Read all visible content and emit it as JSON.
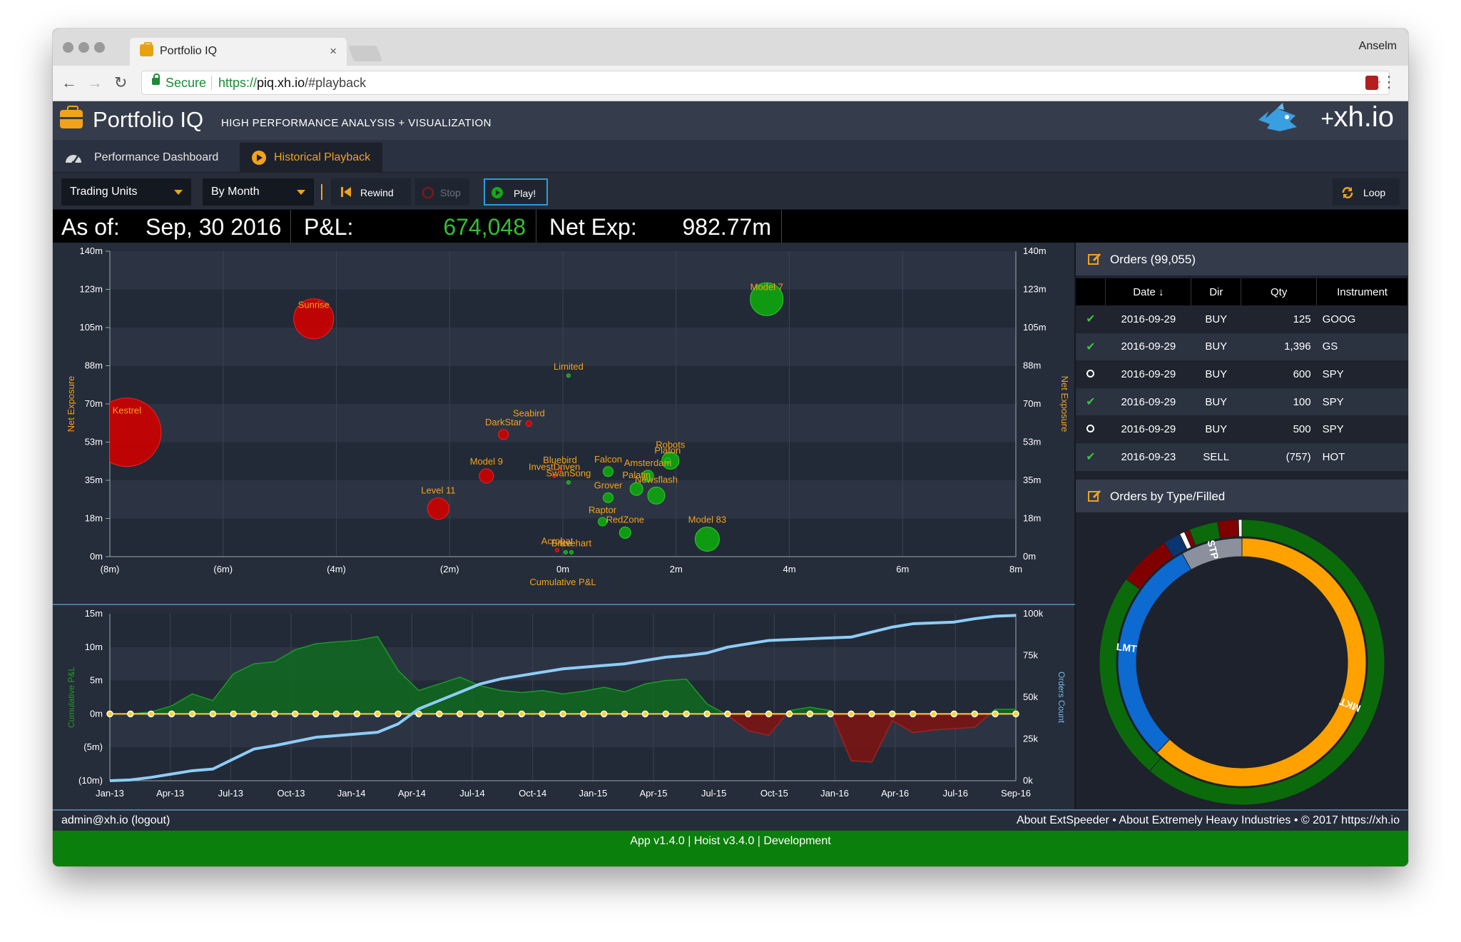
{
  "browser": {
    "tab_title": "Portfolio IQ",
    "tab_close": "×",
    "profile_name": "Anselm",
    "secure_label": "Secure",
    "url_scheme": "https://",
    "url_domain": "piq.xh.io",
    "url_path": "/#playback",
    "back_icon": "←",
    "forward_icon": "→",
    "reload_icon": "↻",
    "star_icon": "☆",
    "menu_icon": "⋮"
  },
  "app": {
    "title": "Portfolio IQ",
    "subtitle": "HIGH PERFORMANCE ANALYSIS + VISUALIZATION",
    "logo_plus": "+",
    "logo_text": "xh.io",
    "accent_color": "#f2a21b"
  },
  "nav": {
    "tabs": [
      {
        "label": "Performance Dashboard",
        "icon": "gauge-icon",
        "active": false
      },
      {
        "label": "Historical Playback",
        "icon": "play-circle-icon",
        "active": true
      }
    ]
  },
  "toolbar": {
    "dimension_select": "Trading Units",
    "period_select": "By Month",
    "rewind_label": "Rewind",
    "stop_label": "Stop",
    "play_label": "Play!",
    "loop_label": "Loop"
  },
  "summary": {
    "asof_label": "As of:",
    "asof_value": "Sep, 30 2016",
    "pnl_label": "P&L:",
    "pnl_value": "674,048",
    "netexp_label": "Net Exp:",
    "netexp_value": "982.77m"
  },
  "chart_data": [
    {
      "type": "scatter",
      "title": "",
      "xlabel": "Cumulative P&L",
      "ylabel": "Net Exposure",
      "ylabel_right": "Net Exposure",
      "xlim": [
        -8,
        8
      ],
      "ylim": [
        0,
        140
      ],
      "x_ticks": [
        "(8m)",
        "(6m)",
        "(4m)",
        "(2m)",
        "0m",
        "2m",
        "4m",
        "6m",
        "8m"
      ],
      "y_ticks": [
        "0m",
        "18m",
        "35m",
        "53m",
        "70m",
        "88m",
        "105m",
        "123m",
        "140m"
      ],
      "grid": true,
      "points": [
        {
          "name": "Kestrel",
          "x": -7.7,
          "y": 57,
          "size": 48,
          "color": "#cc0000"
        },
        {
          "name": "Sunrise",
          "x": -4.4,
          "y": 109,
          "size": 28,
          "color": "#cc0000"
        },
        {
          "name": "Model 7",
          "x": 3.6,
          "y": 118,
          "size": 23,
          "color": "#0fa40f"
        },
        {
          "name": "Limited",
          "x": 0.1,
          "y": 83,
          "size": 2.5,
          "color": "#0fa40f"
        },
        {
          "name": "Seabird",
          "x": -0.6,
          "y": 61,
          "size": 4,
          "color": "#cc0000"
        },
        {
          "name": "DarkStar",
          "x": -1.05,
          "y": 56,
          "size": 7,
          "color": "#cc0000"
        },
        {
          "name": "Model 9",
          "x": -1.35,
          "y": 37,
          "size": 10,
          "color": "#cc0000"
        },
        {
          "name": "Level 11",
          "x": -2.2,
          "y": 22,
          "size": 15,
          "color": "#cc0000"
        },
        {
          "name": "Bluebird",
          "x": -0.05,
          "y": 40,
          "size": 2.5,
          "color": "#cc0000"
        },
        {
          "name": "InvestDriven",
          "x": -0.15,
          "y": 37,
          "size": 2.5,
          "color": "#cc0000"
        },
        {
          "name": "SwanSong",
          "x": 0.1,
          "y": 34,
          "size": 2.5,
          "color": "#0fa40f"
        },
        {
          "name": "Falcon",
          "x": 0.8,
          "y": 39,
          "size": 7,
          "color": "#0fa40f"
        },
        {
          "name": "Amsterdam",
          "x": 1.5,
          "y": 37,
          "size": 8,
          "color": "#0fa40f"
        },
        {
          "name": "Palatin",
          "x": 1.3,
          "y": 31,
          "size": 9,
          "color": "#0fa40f"
        },
        {
          "name": "Newsflash",
          "x": 1.65,
          "y": 28,
          "size": 12,
          "color": "#0fa40f"
        },
        {
          "name": "Robots",
          "x": 1.9,
          "y": 44,
          "size": 12,
          "color": "#0fa40f"
        },
        {
          "name": "Platon",
          "x": 1.85,
          "y": 44,
          "size": 4,
          "color": "#0fa40f"
        },
        {
          "name": "Grover",
          "x": 0.8,
          "y": 27,
          "size": 7,
          "color": "#0fa40f"
        },
        {
          "name": "Raptor",
          "x": 0.7,
          "y": 16,
          "size": 6,
          "color": "#0fa40f"
        },
        {
          "name": "RedZone",
          "x": 1.1,
          "y": 11,
          "size": 8,
          "color": "#0fa40f"
        },
        {
          "name": "Model 83",
          "x": 2.55,
          "y": 8,
          "size": 17,
          "color": "#0fa40f"
        },
        {
          "name": "Acrobat",
          "x": -0.1,
          "y": 3,
          "size": 2.5,
          "color": "#cc0000"
        },
        {
          "name": "Ice",
          "x": 0.05,
          "y": 2,
          "size": 2.5,
          "color": "#0fa40f"
        },
        {
          "name": "Bravehart",
          "x": 0.15,
          "y": 2,
          "size": 2.5,
          "color": "#0fa40f"
        }
      ]
    },
    {
      "type": "area",
      "title": "",
      "xlabel": "",
      "ylabel": "Cumulative P&L",
      "ylabel_right": "Orders Count",
      "ylim": [
        -10,
        15
      ],
      "ylim_right": [
        0,
        100000
      ],
      "x_ticks": [
        "Jan-13",
        "Apr-13",
        "Jul-13",
        "Oct-13",
        "Jan-14",
        "Apr-14",
        "Jul-14",
        "Oct-14",
        "Jan-15",
        "Apr-15",
        "Jul-15",
        "Oct-15",
        "Jan-16",
        "Apr-16",
        "Jul-16",
        "Sep-16"
      ],
      "y_ticks": [
        "(10m)",
        "(5m)",
        "0m",
        "5m",
        "10m",
        "15m"
      ],
      "y_ticks_right": [
        "0k",
        "25k",
        "50k",
        "75k",
        "100k"
      ],
      "grid": true,
      "x": [
        "Jan-13",
        "Feb-13",
        "Mar-13",
        "Apr-13",
        "May-13",
        "Jun-13",
        "Jul-13",
        "Aug-13",
        "Sep-13",
        "Oct-13",
        "Nov-13",
        "Dec-13",
        "Jan-14",
        "Feb-14",
        "Mar-14",
        "Apr-14",
        "May-14",
        "Jun-14",
        "Jul-14",
        "Aug-14",
        "Sep-14",
        "Oct-14",
        "Nov-14",
        "Dec-14",
        "Jan-15",
        "Feb-15",
        "Mar-15",
        "Apr-15",
        "May-15",
        "Jun-15",
        "Jul-15",
        "Aug-15",
        "Sep-15",
        "Oct-15",
        "Nov-15",
        "Dec-15",
        "Jan-16",
        "Feb-16",
        "Mar-16",
        "Apr-16",
        "May-16",
        "Jun-16",
        "Jul-16",
        "Aug-16",
        "Sep-16"
      ],
      "series": [
        {
          "name": "Cumulative P&L",
          "axis": "left",
          "values": [
            0,
            0,
            0.3,
            1.2,
            3,
            2,
            6,
            7.5,
            7.8,
            9.6,
            10.5,
            10.8,
            11,
            11.6,
            6.5,
            3.5,
            4.5,
            5.5,
            4.2,
            3.5,
            3.2,
            3.5,
            3,
            3.4,
            4,
            3.3,
            4.5,
            5,
            5.2,
            1.5,
            -0.2,
            -2.5,
            -3.2,
            0.5,
            1,
            0.5,
            -7,
            -7.2,
            -1,
            -2.8,
            -2.4,
            -2.2,
            -2,
            0.7,
            0.7
          ]
        },
        {
          "name": "Orders Count",
          "axis": "right",
          "values": [
            0,
            500,
            2000,
            4000,
            6000,
            7000,
            13000,
            19000,
            21000,
            23500,
            26000,
            27000,
            28000,
            29000,
            34000,
            43000,
            48000,
            53000,
            58000,
            61000,
            63000,
            65000,
            67000,
            68000,
            69000,
            70000,
            72000,
            74000,
            75000,
            76500,
            80000,
            82000,
            84000,
            84500,
            85000,
            85500,
            86000,
            89000,
            92000,
            94000,
            94500,
            95000,
            97000,
            98500,
            99000
          ]
        }
      ]
    },
    {
      "type": "pie",
      "title": "Orders by Type/Filled",
      "series": [
        {
          "name": "Type",
          "ring": "inner",
          "slices": [
            {
              "label": "MKT",
              "value": 62,
              "color": "#ffa200"
            },
            {
              "label": "LMT",
              "value": 30,
              "color": "#0d6ad0"
            },
            {
              "label": "STP",
              "value": 8,
              "color": "#8a919c"
            }
          ]
        },
        {
          "name": "Filled",
          "ring": "outer",
          "slices": [
            {
              "label": "",
              "value": 62,
              "color": "#0b6b0b"
            },
            {
              "label": "",
              "value": 24,
              "color": "#0b6b0b"
            },
            {
              "label": "",
              "value": 6,
              "color": "#800000"
            },
            {
              "label": "",
              "value": 2,
              "color": "#0a3570"
            },
            {
              "label": "",
              "value": 0.6,
              "color": "#ffffff"
            },
            {
              "label": "",
              "value": 0.6,
              "color": "#800000"
            },
            {
              "label": "",
              "value": 3.3,
              "color": "#0b6b0b"
            },
            {
              "label": "",
              "value": 2.4,
              "color": "#800000"
            },
            {
              "label": "",
              "value": 0.4,
              "color": "#ffffff"
            }
          ]
        }
      ]
    }
  ],
  "orders": {
    "title": "Orders (99,055)",
    "columns": [
      "Date ↓",
      "Dir",
      "Qty",
      "Instrument"
    ],
    "rows": [
      {
        "status": "filled",
        "date": "2016-09-29",
        "dir": "BUY",
        "qty": "125",
        "instrument": "GOOG"
      },
      {
        "status": "filled",
        "date": "2016-09-29",
        "dir": "BUY",
        "qty": "1,396",
        "instrument": "GS"
      },
      {
        "status": "open",
        "date": "2016-09-29",
        "dir": "BUY",
        "qty": "600",
        "instrument": "SPY"
      },
      {
        "status": "filled",
        "date": "2016-09-29",
        "dir": "BUY",
        "qty": "100",
        "instrument": "SPY"
      },
      {
        "status": "open",
        "date": "2016-09-29",
        "dir": "BUY",
        "qty": "500",
        "instrument": "SPY"
      },
      {
        "status": "filled",
        "date": "2016-09-23",
        "dir": "SELL",
        "qty": "(757)",
        "instrument": "HOT"
      }
    ]
  },
  "orders_by_type": {
    "title": "Orders by Type/Filled"
  },
  "footer": {
    "user": "admin@xh.io (logout)",
    "links": "About ExtSpeeder • About Extremely Heavy Industries • © 2017 https://xh.io",
    "version": "App v1.4.0 | Hoist v3.4.0 | Development"
  }
}
